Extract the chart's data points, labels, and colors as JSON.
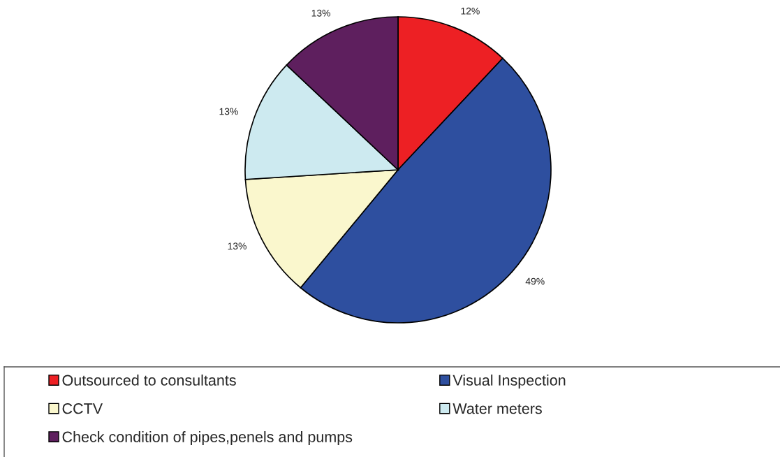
{
  "chart_data": {
    "type": "pie",
    "categories": [
      "Outsourced to consultants",
      "Visual Inspection",
      "CCTV",
      "Water meters",
      "Check condition of pipes,penels and pumps"
    ],
    "values": [
      12,
      49,
      13,
      13,
      13
    ],
    "colors": [
      "#ed2024",
      "#2e4f9f",
      "#faf7cd",
      "#cdeaf0",
      "#5e1f5e"
    ],
    "value_labels": [
      "12%",
      "49%",
      "13%",
      "13%",
      "13%"
    ],
    "legend": "bottom"
  }
}
